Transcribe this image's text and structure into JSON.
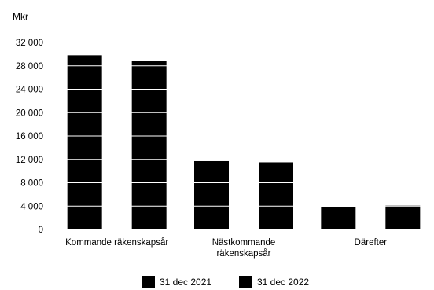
{
  "chart_data": {
    "type": "bar",
    "ylabel": "Mkr",
    "ylim": [
      0,
      32000
    ],
    "yticks": [
      0,
      4000,
      8000,
      12000,
      16000,
      20000,
      24000,
      28000,
      32000
    ],
    "ytick_labels": [
      "0",
      "4 000",
      "8 000",
      "12 000",
      "16 000",
      "20 000",
      "24 000",
      "28 000",
      "32 000"
    ],
    "categories": [
      [
        "Kommande räkenskapsår"
      ],
      [
        "Nästkommande",
        "räkenskapsår"
      ],
      [
        "Därefter"
      ]
    ],
    "series": [
      {
        "name": "31 dec 2021",
        "color": "#000000",
        "values": [
          29800,
          11700,
          3800
        ]
      },
      {
        "name": "31 dec 2022",
        "color": "#000000",
        "values": [
          28800,
          11500,
          4100
        ]
      }
    ],
    "grid": true,
    "grid_color": "#ffffff",
    "legend_position": "bottom"
  }
}
